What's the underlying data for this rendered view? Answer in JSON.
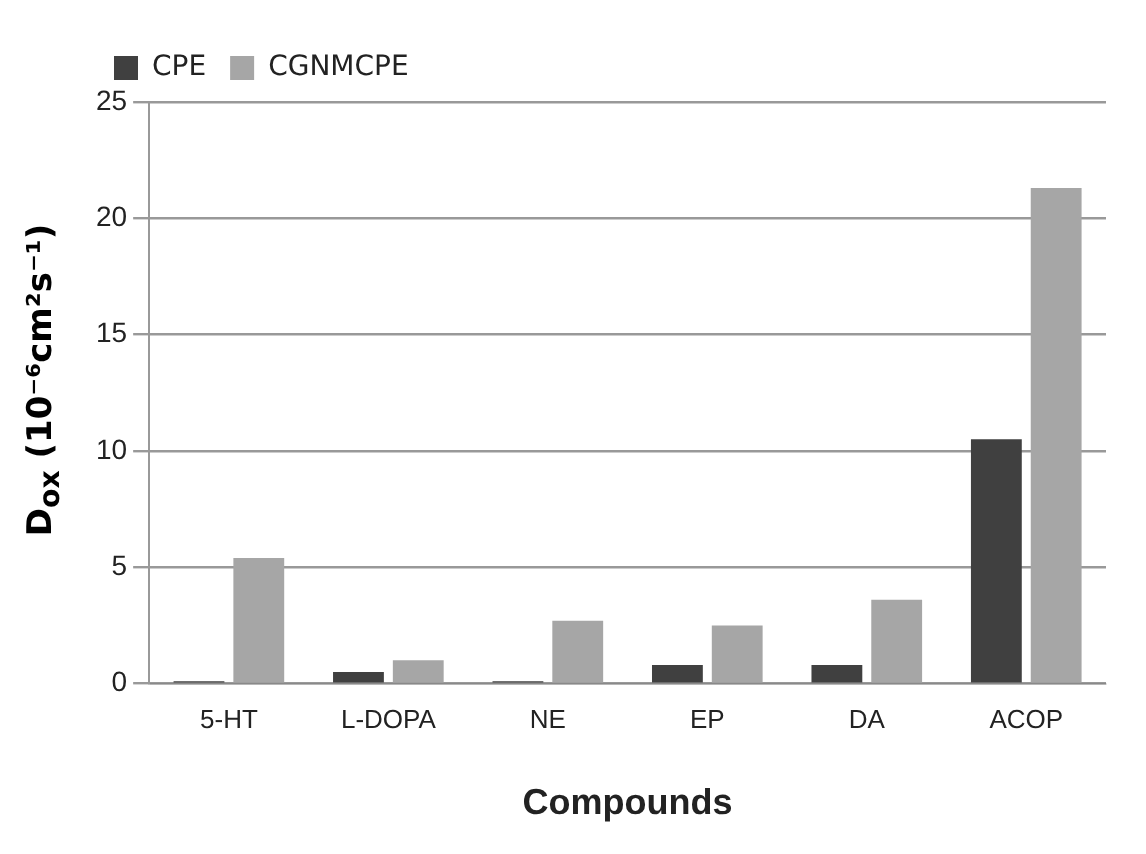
{
  "chart_data": {
    "type": "bar",
    "xlabel": "Compounds",
    "ylabel": "D$_{ox}$ (10⁻⁶cm²s⁻¹)",
    "categories": [
      "5-HT",
      "L-DOPA",
      "NE",
      "EP",
      "DA",
      "ACOP"
    ],
    "series": [
      {
        "name": "CPE",
        "color": "#404040",
        "values": [
          0.1,
          0.5,
          0.1,
          0.8,
          0.8,
          10.5
        ]
      },
      {
        "name": "CGNMCPE",
        "color": "#a6a6a6",
        "values": [
          5.4,
          1.0,
          2.7,
          2.5,
          3.6,
          21.3
        ]
      }
    ],
    "ylim": [
      0,
      25
    ],
    "yticks": [
      0,
      5,
      10,
      15,
      20,
      25
    ],
    "grid": "y",
    "legend": "top left"
  }
}
